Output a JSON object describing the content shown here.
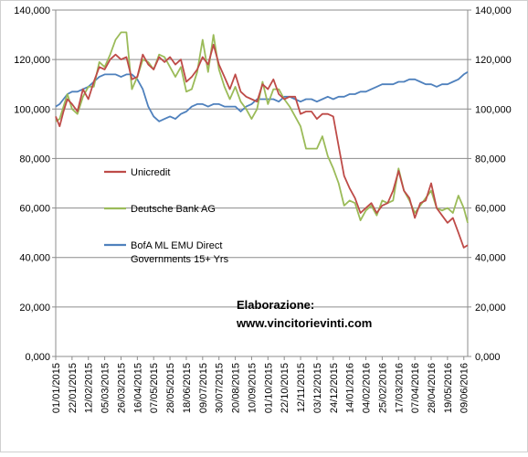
{
  "chart_data": {
    "type": "line",
    "title": "",
    "xlabel": "",
    "ylabel": "",
    "ylim": [
      0,
      140
    ],
    "y_tick_values": [
      0,
      20,
      40,
      60,
      80,
      100,
      120,
      140
    ],
    "y_tick_labels": [
      "0,000",
      "20,000",
      "40,000",
      "60,000",
      "80,000",
      "100,000",
      "120,000",
      "140,000"
    ],
    "x_tick_labels": [
      "01/01/2015",
      "22/01/2015",
      "12/02/2015",
      "05/03/2015",
      "26/03/2015",
      "16/04/2015",
      "07/05/2015",
      "28/05/2015",
      "18/06/2015",
      "09/07/2015",
      "30/07/2015",
      "20/08/2015",
      "10/09/2015",
      "01/10/2015",
      "22/10/2015",
      "12/11/2015",
      "03/12/2015",
      "24/12/2015",
      "14/01/2016",
      "04/02/2016",
      "25/02/2016",
      "17/03/2016",
      "07/04/2016",
      "28/04/2016",
      "19/05/2016",
      "09/06/2016"
    ],
    "x_tick_days": [
      0,
      21,
      42,
      63,
      84,
      105,
      126,
      147,
      168,
      189,
      210,
      231,
      252,
      273,
      294,
      315,
      336,
      357,
      378,
      399,
      420,
      441,
      462,
      483,
      504,
      525
    ],
    "x_range_days": [
      0,
      530
    ],
    "gridlines": "horizontal",
    "legend_position": "left-inside",
    "series": [
      {
        "name": "Unicredit",
        "color": "#be4b48",
        "x_days": [
          0,
          5,
          10,
          15,
          21,
          28,
          35,
          42,
          49,
          56,
          63,
          70,
          77,
          84,
          91,
          98,
          105,
          112,
          119,
          126,
          133,
          140,
          147,
          154,
          161,
          168,
          175,
          182,
          189,
          196,
          203,
          210,
          217,
          224,
          231,
          238,
          245,
          252,
          259,
          266,
          273,
          280,
          287,
          294,
          301,
          308,
          315,
          322,
          329,
          336,
          343,
          350,
          357,
          364,
          371,
          378,
          385,
          392,
          399,
          406,
          413,
          420,
          427,
          434,
          441,
          448,
          455,
          462,
          469,
          476,
          483,
          490,
          497,
          504,
          511,
          518,
          525,
          530
        ],
        "values": [
          97,
          93,
          99,
          104,
          102,
          99,
          108,
          104,
          111,
          117,
          116,
          120,
          122,
          120,
          121,
          112,
          113,
          122,
          118,
          116,
          121,
          119,
          121,
          118,
          120,
          111,
          113,
          116,
          121,
          118,
          126,
          118,
          113,
          108,
          114,
          107,
          105,
          104,
          103,
          110,
          108,
          112,
          106,
          104,
          105,
          105,
          98,
          99,
          99,
          96,
          98,
          98,
          97,
          85,
          73,
          68,
          64,
          58,
          60,
          62,
          58,
          61,
          62,
          67,
          75,
          67,
          64,
          56,
          62,
          63,
          70,
          60,
          57,
          54,
          56,
          50,
          44,
          45
        ]
      },
      {
        "name": "Deutsche Bank AG",
        "color": "#9bbb59",
        "x_days": [
          0,
          5,
          10,
          15,
          21,
          28,
          35,
          42,
          49,
          56,
          63,
          70,
          77,
          84,
          91,
          98,
          105,
          112,
          119,
          126,
          133,
          140,
          147,
          154,
          161,
          168,
          175,
          182,
          189,
          196,
          203,
          210,
          217,
          224,
          231,
          238,
          245,
          252,
          259,
          266,
          273,
          280,
          287,
          294,
          301,
          308,
          315,
          322,
          329,
          336,
          343,
          350,
          357,
          364,
          371,
          378,
          385,
          392,
          399,
          406,
          413,
          420,
          427,
          434,
          441,
          448,
          455,
          462,
          469,
          476,
          483,
          490,
          497,
          504,
          511,
          518,
          525,
          530
        ],
        "values": [
          95,
          96,
          101,
          106,
          100,
          98,
          105,
          109,
          109,
          119,
          117,
          122,
          128,
          131,
          131,
          108,
          113,
          120,
          119,
          116,
          122,
          121,
          117,
          113,
          117,
          107,
          108,
          115,
          128,
          115,
          130,
          116,
          109,
          104,
          109,
          103,
          100,
          96,
          100,
          111,
          102,
          108,
          108,
          104,
          101,
          97,
          93,
          84,
          84,
          84,
          89,
          81,
          76,
          70,
          61,
          63,
          62,
          55,
          59,
          61,
          57,
          63,
          62,
          63,
          76,
          67,
          63,
          58,
          61,
          64,
          67,
          60,
          59,
          60,
          58,
          65,
          60,
          54
        ]
      },
      {
        "name": "BofA ML EMU  Direct Governments 15+ Yrs",
        "color": "#4f81bd",
        "x_days": [
          0,
          5,
          10,
          15,
          21,
          28,
          35,
          42,
          49,
          56,
          63,
          70,
          77,
          84,
          91,
          98,
          105,
          112,
          119,
          126,
          133,
          140,
          147,
          154,
          161,
          168,
          175,
          182,
          189,
          196,
          203,
          210,
          217,
          224,
          231,
          238,
          245,
          252,
          259,
          266,
          273,
          280,
          287,
          294,
          301,
          308,
          315,
          322,
          329,
          336,
          343,
          350,
          357,
          364,
          371,
          378,
          385,
          392,
          399,
          406,
          413,
          420,
          427,
          434,
          441,
          448,
          455,
          462,
          469,
          476,
          483,
          490,
          497,
          504,
          511,
          518,
          525,
          530
        ],
        "values": [
          101,
          102,
          104,
          106,
          107,
          107,
          108,
          109,
          111,
          113,
          114,
          114,
          114,
          113,
          114,
          114,
          112,
          108,
          101,
          97,
          95,
          96,
          97,
          96,
          98,
          99,
          101,
          102,
          102,
          101,
          102,
          102,
          101,
          101,
          101,
          99,
          101,
          102,
          104,
          104,
          104,
          104,
          103,
          105,
          105,
          104,
          103,
          104,
          104,
          103,
          104,
          105,
          104,
          105,
          105,
          106,
          106,
          107,
          107,
          108,
          109,
          110,
          110,
          110,
          111,
          111,
          112,
          112,
          111,
          110,
          110,
          109,
          110,
          110,
          111,
          112,
          114,
          115
        ]
      }
    ]
  },
  "legend": [
    {
      "label": "Unicredit",
      "color": "#be4b48"
    },
    {
      "label": "Deutsche Bank AG",
      "color": "#9bbb59"
    },
    {
      "label_line1": "BofA ML EMU  Direct",
      "label_line2": "Governments 15+ Yrs",
      "color": "#4f81bd"
    }
  ],
  "annotation": {
    "line1": "Elaborazione:",
    "line2": "www.vincitorievinti.com"
  }
}
